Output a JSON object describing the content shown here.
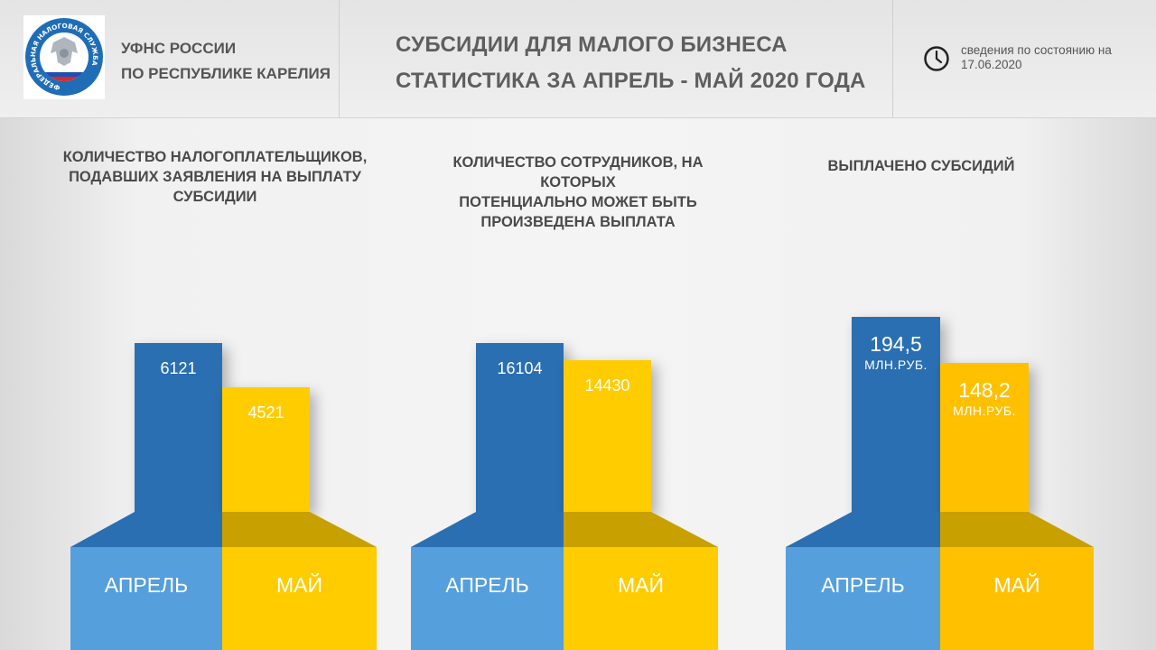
{
  "header": {
    "org_line1": "УФНС РОССИИ",
    "org_line2": "ПО РЕСПУБЛИКЕ КАРЕЛИЯ",
    "emblem_text": "ФЕДЕРАЛЬНАЯ НАЛОГОВАЯ СЛУЖБА",
    "title_line1": "СУБСИДИИ ДЛЯ МАЛОГО БИЗНЕСА",
    "title_line2": "СТАТИСТИКА ЗА АПРЕЛЬ - МАЙ 2020 ГОДА",
    "asof_line1": "сведения по состоянию на",
    "asof_line2": "17.06.2020",
    "clock_icon": "clock-icon"
  },
  "colors": {
    "april_bar": "#2a6fb2",
    "april_base": "#559fdc",
    "may_bar": "#ffcc00",
    "may_base": "#ffcc00"
  },
  "chart_data": [
    {
      "type": "bar",
      "title": "КОЛИЧЕСТВО НАЛОГОПЛАТЕЛЬЩИКОВ, ПОДАВШИХ ЗАЯВЛЕНИЯ НА ВЫПЛАТУ СУБСИДИИ",
      "title_lines": [
        "КОЛИЧЕСТВО НАЛОГОПЛАТЕЛЬЩИКОВ,",
        "ПОДАВШИХ ЗАЯВЛЕНИЯ НА ВЫПЛАТУ",
        "СУБСИДИИ"
      ],
      "categories": [
        "АПРЕЛЬ",
        "МАЙ"
      ],
      "values": [
        6121,
        4521
      ],
      "value_labels": [
        "6121",
        "4521"
      ],
      "unit": "",
      "ylim": [
        0,
        12000
      ]
    },
    {
      "type": "bar",
      "title": "КОЛИЧЕСТВО СОТРУДНИКОВ, НА КОТОРЫХ ПОТЕНЦИАЛЬНО МОЖЕТ БЫТЬ ПРОИЗВЕДЕНА ВЫПЛАТА",
      "title_lines": [
        "КОЛИЧЕСТВО СОТРУДНИКОВ, НА КОТОРЫХ",
        "ПОТЕНЦИАЛЬНО МОЖЕТ БЫТЬ",
        "ПРОИЗВЕДЕНА ВЫПЛАТА"
      ],
      "categories": [
        "АПРЕЛЬ",
        "МАЙ"
      ],
      "values": [
        16104,
        14430
      ],
      "value_labels": [
        "16104",
        "14430"
      ],
      "unit": "",
      "ylim": [
        0,
        31600
      ]
    },
    {
      "type": "bar",
      "title": "ВЫПЛАЧЕНО СУБСИДИЙ",
      "title_lines": [
        "ВЫПЛАЧЕНО СУБСИДИЙ"
      ],
      "categories": [
        "АПРЕЛЬ",
        "МАЙ"
      ],
      "values": [
        194.5,
        148.2
      ],
      "value_labels": [
        "194,5",
        "148,2"
      ],
      "unit": "МЛН.РУБ.",
      "ylim": [
        0,
        330
      ]
    }
  ]
}
